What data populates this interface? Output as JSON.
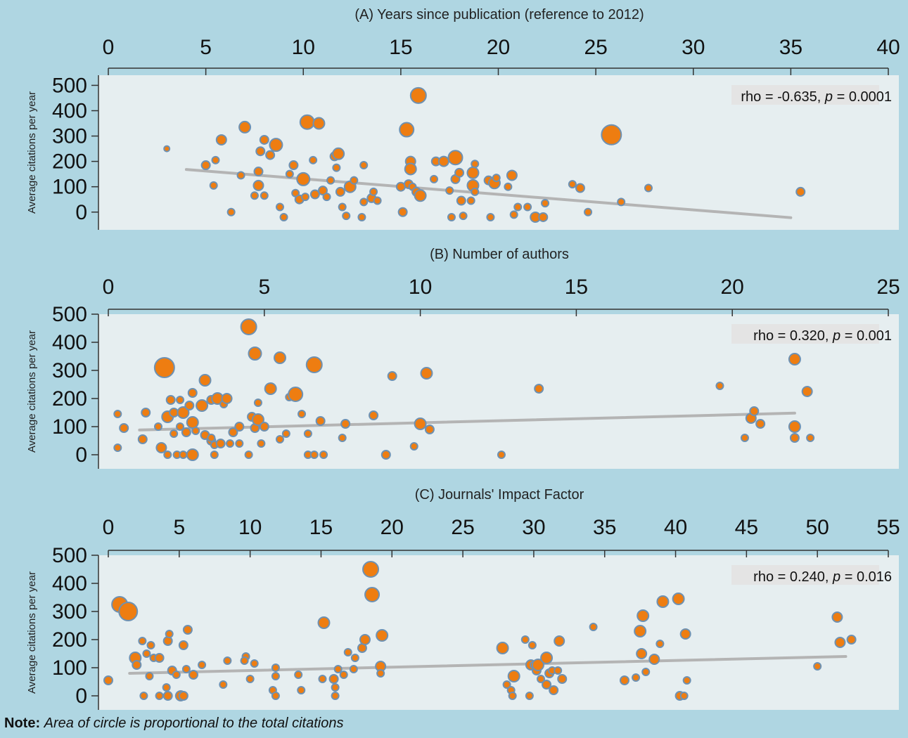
{
  "note": {
    "label": "Note:",
    "text": "Area of circle is proportional to the total citations"
  },
  "style": {
    "background": "#afd6e2",
    "plot_bg": "#e6eef0",
    "bubble_fill": "#ee7d11",
    "bubble_stroke": "#6e91b2",
    "fit_line": "#b4b4b4",
    "rho_box": "#e4e4e4"
  },
  "chart_data": [
    {
      "type": "scatter",
      "title": "(A) Years since publication (reference to 2012)",
      "ylabel": "Average citations per year",
      "xlim": [
        0,
        40
      ],
      "xticks": [
        "0",
        "5",
        "10",
        "15",
        "20",
        "25",
        "30",
        "35",
        "40"
      ],
      "ylim": [
        -70,
        540
      ],
      "yticks": [
        "500",
        "400",
        "300",
        "200",
        "100",
        "0"
      ],
      "stat": {
        "rho": "rho = -0.635, ",
        "p_symbol": "p",
        "p_value": " = 0.0001"
      },
      "fit": {
        "x": [
          4,
          35
        ],
        "y": [
          168,
          -22
        ]
      },
      "points": [
        [
          3,
          250,
          4
        ],
        [
          5,
          185,
          6
        ],
        [
          5.5,
          205,
          5
        ],
        [
          5.4,
          105,
          5
        ],
        [
          5.8,
          285,
          7
        ],
        [
          6.3,
          0,
          5
        ],
        [
          6.8,
          145,
          5
        ],
        [
          7,
          335,
          8
        ],
        [
          7.5,
          65,
          5
        ],
        [
          7.7,
          160,
          6
        ],
        [
          7.7,
          105,
          7
        ],
        [
          7.8,
          240,
          6
        ],
        [
          8,
          285,
          6
        ],
        [
          8,
          65,
          5
        ],
        [
          8.3,
          225,
          6
        ],
        [
          8.6,
          265,
          9
        ],
        [
          8.8,
          20,
          5
        ],
        [
          9,
          -20,
          5
        ],
        [
          9.3,
          150,
          5
        ],
        [
          9.5,
          185,
          6
        ],
        [
          9.6,
          75,
          5
        ],
        [
          9.8,
          50,
          6
        ],
        [
          10,
          130,
          9
        ],
        [
          10.1,
          60,
          5
        ],
        [
          10.2,
          355,
          10
        ],
        [
          10.5,
          205,
          5
        ],
        [
          10.6,
          70,
          6
        ],
        [
          10.8,
          350,
          8
        ],
        [
          11,
          85,
          6
        ],
        [
          11.2,
          60,
          5
        ],
        [
          11.4,
          125,
          5
        ],
        [
          11.6,
          220,
          6
        ],
        [
          11.7,
          175,
          5
        ],
        [
          11.8,
          230,
          8
        ],
        [
          11.9,
          80,
          6
        ],
        [
          12,
          20,
          5
        ],
        [
          12.2,
          -15,
          5
        ],
        [
          12.4,
          100,
          8
        ],
        [
          12.6,
          125,
          5
        ],
        [
          13,
          -20,
          5
        ],
        [
          13.1,
          185,
          5
        ],
        [
          13.1,
          40,
          5
        ],
        [
          13.5,
          55,
          6
        ],
        [
          13.6,
          80,
          5
        ],
        [
          13.8,
          45,
          5
        ],
        [
          15,
          100,
          6
        ],
        [
          15.1,
          0,
          6
        ],
        [
          15.3,
          325,
          10
        ],
        [
          15.4,
          110,
          6
        ],
        [
          15.5,
          200,
          7
        ],
        [
          15.5,
          170,
          8
        ],
        [
          15.6,
          100,
          5
        ],
        [
          15.8,
          80,
          6
        ],
        [
          15.9,
          460,
          11
        ],
        [
          16,
          65,
          8
        ],
        [
          16.7,
          130,
          5
        ],
        [
          16.8,
          200,
          6
        ],
        [
          17.2,
          200,
          7
        ],
        [
          17.5,
          85,
          5
        ],
        [
          17.6,
          -20,
          5
        ],
        [
          17.8,
          215,
          10
        ],
        [
          17.8,
          130,
          6
        ],
        [
          18,
          155,
          6
        ],
        [
          18.1,
          45,
          6
        ],
        [
          18.2,
          -15,
          5
        ],
        [
          18.6,
          45,
          5
        ],
        [
          18.7,
          155,
          8
        ],
        [
          18.7,
          105,
          8
        ],
        [
          18.8,
          80,
          5
        ],
        [
          18.8,
          190,
          5
        ],
        [
          19.5,
          125,
          6
        ],
        [
          19.6,
          -20,
          5
        ],
        [
          19.8,
          115,
          8
        ],
        [
          19.9,
          135,
          5
        ],
        [
          20.5,
          100,
          5
        ],
        [
          20.7,
          145,
          7
        ],
        [
          20.8,
          -10,
          5
        ],
        [
          21,
          20,
          5
        ],
        [
          21.5,
          20,
          5
        ],
        [
          21.9,
          -20,
          7
        ],
        [
          22.3,
          -20,
          6
        ],
        [
          22.4,
          35,
          5
        ],
        [
          23.8,
          110,
          5
        ],
        [
          24.2,
          95,
          6
        ],
        [
          24.6,
          0,
          5
        ],
        [
          25.8,
          305,
          14
        ],
        [
          26.3,
          40,
          5
        ],
        [
          27.7,
          95,
          5
        ],
        [
          35.5,
          80,
          6
        ]
      ]
    },
    {
      "type": "scatter",
      "title": "(B) Number of authors",
      "ylabel": "Average citations per year",
      "xlim": [
        0,
        25
      ],
      "xticks": [
        "0",
        "5",
        "10",
        "15",
        "20",
        "25"
      ],
      "ylim": [
        -50,
        500
      ],
      "yticks": [
        "500",
        "400",
        "300",
        "200",
        "100",
        "0"
      ],
      "stat": {
        "rho": "rho = 0.320, ",
        "p_symbol": "p",
        "p_value": " = 0.001"
      },
      "fit": {
        "x": [
          1,
          22
        ],
        "y": [
          88,
          148
        ]
      },
      "points": [
        [
          0.3,
          145,
          5
        ],
        [
          0.3,
          25,
          5
        ],
        [
          0.5,
          95,
          6
        ],
        [
          1.1,
          55,
          6
        ],
        [
          1.2,
          150,
          6
        ],
        [
          1.6,
          100,
          5
        ],
        [
          1.7,
          25,
          7
        ],
        [
          1.8,
          310,
          14
        ],
        [
          1.9,
          135,
          8
        ],
        [
          1.9,
          0,
          5
        ],
        [
          2,
          195,
          6
        ],
        [
          2.1,
          150,
          6
        ],
        [
          2.1,
          75,
          5
        ],
        [
          2.2,
          0,
          5
        ],
        [
          2.3,
          195,
          5
        ],
        [
          2.3,
          100,
          5
        ],
        [
          2.4,
          150,
          8
        ],
        [
          2.4,
          0,
          5
        ],
        [
          2.5,
          80,
          6
        ],
        [
          2.6,
          175,
          6
        ],
        [
          2.7,
          220,
          6
        ],
        [
          2.7,
          115,
          8
        ],
        [
          2.7,
          0,
          8
        ],
        [
          2.8,
          85,
          5
        ],
        [
          3,
          175,
          8
        ],
        [
          3.1,
          70,
          6
        ],
        [
          3.1,
          265,
          8
        ],
        [
          3.3,
          195,
          6
        ],
        [
          3.3,
          50,
          6
        ],
        [
          3.3,
          60,
          5
        ],
        [
          3.4,
          35,
          5
        ],
        [
          3.4,
          0,
          5
        ],
        [
          3.5,
          200,
          8
        ],
        [
          3.6,
          40,
          6
        ],
        [
          3.7,
          180,
          5
        ],
        [
          3.8,
          200,
          7
        ],
        [
          3.9,
          40,
          5
        ],
        [
          4,
          80,
          6
        ],
        [
          4.2,
          100,
          6
        ],
        [
          4.2,
          40,
          5
        ],
        [
          4.5,
          455,
          11
        ],
        [
          4.6,
          135,
          6
        ],
        [
          4.5,
          0,
          5
        ],
        [
          4.7,
          360,
          9
        ],
        [
          4.7,
          95,
          6
        ],
        [
          4.8,
          185,
          5
        ],
        [
          4.8,
          125,
          8
        ],
        [
          4.9,
          40,
          5
        ],
        [
          5,
          100,
          6
        ],
        [
          5.2,
          235,
          8
        ],
        [
          5.5,
          345,
          8
        ],
        [
          5.5,
          55,
          5
        ],
        [
          5.7,
          75,
          5
        ],
        [
          5.8,
          205,
          5
        ],
        [
          6,
          215,
          10
        ],
        [
          6.2,
          145,
          5
        ],
        [
          6.4,
          75,
          5
        ],
        [
          6.4,
          0,
          5
        ],
        [
          6.6,
          0,
          5
        ],
        [
          6.6,
          320,
          11
        ],
        [
          6.8,
          120,
          6
        ],
        [
          6.9,
          0,
          5
        ],
        [
          7.5,
          60,
          5
        ],
        [
          7.6,
          110,
          6
        ],
        [
          8.5,
          140,
          6
        ],
        [
          8.9,
          0,
          6
        ],
        [
          9.1,
          280,
          6
        ],
        [
          9.8,
          30,
          5
        ],
        [
          10,
          110,
          8
        ],
        [
          10.3,
          90,
          6
        ],
        [
          10.2,
          290,
          8
        ],
        [
          12.6,
          0,
          5
        ],
        [
          13.8,
          235,
          6
        ],
        [
          19.6,
          245,
          5
        ],
        [
          20.4,
          60,
          5
        ],
        [
          20.6,
          130,
          7
        ],
        [
          20.7,
          155,
          6
        ],
        [
          20.9,
          110,
          6
        ],
        [
          22,
          340,
          8
        ],
        [
          22,
          100,
          8
        ],
        [
          22,
          60,
          6
        ],
        [
          22.4,
          225,
          7
        ],
        [
          22.5,
          60,
          5
        ]
      ]
    },
    {
      "type": "scatter",
      "title": "(C) Journals' Impact Factor",
      "ylabel": "Average citations per year",
      "xlim": [
        0,
        55
      ],
      "xticks": [
        "0",
        "5",
        "10",
        "15",
        "20",
        "25",
        "30",
        "35",
        "40",
        "45",
        "50",
        "55"
      ],
      "ylim": [
        -50,
        500
      ],
      "yticks": [
        "500",
        "400",
        "300",
        "200",
        "100",
        "0"
      ],
      "stat": {
        "rho": "rho = 0.240, ",
        "p_symbol": "p",
        "p_value": " = 0.016"
      },
      "fit": {
        "x": [
          1.5,
          52
        ],
        "y": [
          80,
          140
        ]
      },
      "points": [
        [
          0,
          55,
          6
        ],
        [
          0.8,
          325,
          11
        ],
        [
          1.4,
          300,
          13
        ],
        [
          1.9,
          135,
          8
        ],
        [
          2,
          110,
          6
        ],
        [
          2.4,
          195,
          5
        ],
        [
          2.7,
          150,
          5
        ],
        [
          2.5,
          0,
          5
        ],
        [
          3,
          180,
          5
        ],
        [
          2.9,
          70,
          5
        ],
        [
          3.2,
          135,
          5
        ],
        [
          3.6,
          0,
          5
        ],
        [
          3.6,
          135,
          6
        ],
        [
          4.1,
          30,
          5
        ],
        [
          4.2,
          195,
          6
        ],
        [
          4.2,
          0,
          6
        ],
        [
          4.3,
          220,
          5
        ],
        [
          4.5,
          90,
          6
        ],
        [
          4.8,
          75,
          5
        ],
        [
          5.1,
          0,
          7
        ],
        [
          5.3,
          180,
          6
        ],
        [
          5.3,
          0,
          6
        ],
        [
          5.5,
          95,
          5
        ],
        [
          5.6,
          235,
          6
        ],
        [
          6,
          75,
          6
        ],
        [
          6.6,
          110,
          5
        ],
        [
          8.1,
          40,
          5
        ],
        [
          8.4,
          125,
          5
        ],
        [
          9.7,
          140,
          5
        ],
        [
          9.6,
          125,
          5
        ],
        [
          10,
          60,
          5
        ],
        [
          10.3,
          115,
          5
        ],
        [
          11.8,
          100,
          5
        ],
        [
          11.8,
          70,
          5
        ],
        [
          11.6,
          20,
          5
        ],
        [
          11.8,
          0,
          5
        ],
        [
          13.4,
          75,
          5
        ],
        [
          13.6,
          20,
          5
        ],
        [
          15.1,
          60,
          5
        ],
        [
          15.2,
          260,
          8
        ],
        [
          15.9,
          60,
          6
        ],
        [
          16,
          30,
          5
        ],
        [
          16,
          0,
          5
        ],
        [
          16.2,
          95,
          5
        ],
        [
          16.6,
          75,
          5
        ],
        [
          16.9,
          155,
          5
        ],
        [
          17.4,
          135,
          5
        ],
        [
          17.3,
          95,
          5
        ],
        [
          17.9,
          170,
          6
        ],
        [
          18.1,
          200,
          7
        ],
        [
          18.5,
          450,
          11
        ],
        [
          18.6,
          360,
          10
        ],
        [
          19.2,
          105,
          7
        ],
        [
          19.3,
          215,
          8
        ],
        [
          19.2,
          80,
          5
        ],
        [
          27.8,
          170,
          8
        ],
        [
          28.1,
          40,
          5
        ],
        [
          28.4,
          20,
          5
        ],
        [
          28.6,
          70,
          8
        ],
        [
          28.5,
          0,
          5
        ],
        [
          29.4,
          200,
          5
        ],
        [
          29.7,
          0,
          5
        ],
        [
          29.8,
          110,
          7
        ],
        [
          29.9,
          180,
          5
        ],
        [
          30,
          110,
          5
        ],
        [
          30.2,
          90,
          6
        ],
        [
          30.3,
          110,
          8
        ],
        [
          30.5,
          60,
          5
        ],
        [
          30.9,
          135,
          8
        ],
        [
          30.9,
          40,
          6
        ],
        [
          31.1,
          80,
          6
        ],
        [
          31.3,
          90,
          5
        ],
        [
          31.4,
          20,
          6
        ],
        [
          31.7,
          90,
          5
        ],
        [
          31.8,
          195,
          7
        ],
        [
          32,
          60,
          6
        ],
        [
          34.2,
          245,
          5
        ],
        [
          36.4,
          55,
          6
        ],
        [
          37.2,
          65,
          5
        ],
        [
          37.5,
          230,
          8
        ],
        [
          37.6,
          150,
          7
        ],
        [
          37.7,
          285,
          8
        ],
        [
          37.9,
          85,
          5
        ],
        [
          38.5,
          130,
          7
        ],
        [
          38.9,
          185,
          5
        ],
        [
          39.1,
          335,
          8
        ],
        [
          40.2,
          345,
          8
        ],
        [
          40.3,
          0,
          6
        ],
        [
          40.6,
          0,
          5
        ],
        [
          40.7,
          220,
          7
        ],
        [
          40.8,
          55,
          5
        ],
        [
          50,
          105,
          5
        ],
        [
          51.4,
          280,
          7
        ],
        [
          51.6,
          190,
          7
        ],
        [
          52.4,
          200,
          6
        ]
      ]
    }
  ]
}
